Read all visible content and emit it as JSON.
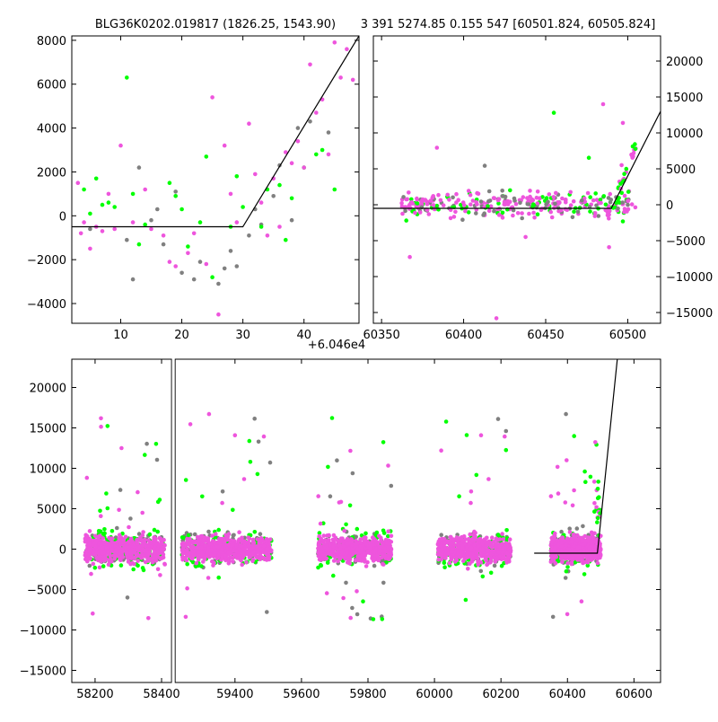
{
  "colors": {
    "green": "#00ff00",
    "gray": "#808080",
    "magenta": "#ee55dd",
    "model": "#000000",
    "frame": "#000000",
    "background": "#ffffff"
  },
  "chart_data": [
    {
      "type": "scatter",
      "title": "BLG36K0202.019817 (1826.25, 1543.90)",
      "x_offset_label": "+6.046e4",
      "xlim": [
        2,
        49
      ],
      "ylim": [
        -4900,
        8200
      ],
      "xticks": [
        10,
        20,
        30,
        40
      ],
      "xtick_labels": [
        "10",
        "20",
        "30",
        "40"
      ],
      "yticks": [
        -4000,
        -2000,
        0,
        2000,
        4000,
        6000,
        8000
      ],
      "ytick_labels": [
        "−4000",
        "−2000",
        "0",
        "2000",
        "4000",
        "6000",
        "8000"
      ],
      "y_axis_side": "left",
      "model_line": {
        "x": [
          2,
          30,
          49
        ],
        "y": [
          -500,
          -500,
          8200
        ]
      },
      "series": [
        {
          "color": "magenta",
          "points": [
            [
              3,
              1500
            ],
            [
              3.5,
              -800
            ],
            [
              4,
              -300
            ],
            [
              5,
              -1500
            ],
            [
              6,
              -500
            ],
            [
              7,
              -700
            ],
            [
              8,
              1000
            ],
            [
              9,
              -600
            ],
            [
              10,
              3200
            ],
            [
              12,
              -300
            ],
            [
              14,
              1200
            ],
            [
              15,
              -600
            ],
            [
              17,
              -900
            ],
            [
              18,
              -2100
            ],
            [
              19,
              -2300
            ],
            [
              21,
              -1700
            ],
            [
              22,
              -800
            ],
            [
              24,
              -2200
            ],
            [
              25,
              5400
            ],
            [
              26,
              -4500
            ],
            [
              27,
              3200
            ],
            [
              28,
              1000
            ],
            [
              29,
              -300
            ],
            [
              31,
              4200
            ],
            [
              32,
              1900
            ],
            [
              33,
              600
            ],
            [
              34,
              -900
            ],
            [
              35,
              1700
            ],
            [
              36,
              -500
            ],
            [
              37,
              2900
            ],
            [
              38,
              2400
            ],
            [
              39,
              3400
            ],
            [
              40,
              2200
            ],
            [
              41,
              6900
            ],
            [
              42,
              4700
            ],
            [
              43,
              5300
            ],
            [
              44,
              2800
            ],
            [
              45,
              7900
            ],
            [
              46,
              6300
            ],
            [
              47,
              7600
            ],
            [
              48,
              6200
            ]
          ]
        },
        {
          "color": "green",
          "points": [
            [
              4,
              1200
            ],
            [
              5,
              100
            ],
            [
              6,
              1700
            ],
            [
              7,
              500
            ],
            [
              8,
              600
            ],
            [
              9,
              400
            ],
            [
              11,
              6300
            ],
            [
              12,
              1000
            ],
            [
              13,
              -1300
            ],
            [
              14,
              -400
            ],
            [
              18,
              1500
            ],
            [
              19,
              900
            ],
            [
              20,
              300
            ],
            [
              21,
              -1400
            ],
            [
              23,
              -300
            ],
            [
              24,
              2700
            ],
            [
              25,
              -2800
            ],
            [
              28,
              -500
            ],
            [
              29,
              1800
            ],
            [
              30,
              400
            ],
            [
              33,
              -500
            ],
            [
              34,
              1200
            ],
            [
              36,
              1400
            ],
            [
              37,
              -1100
            ],
            [
              38,
              800
            ],
            [
              40,
              2200
            ],
            [
              42,
              2800
            ],
            [
              43,
              3000
            ],
            [
              45,
              1200
            ]
          ]
        },
        {
          "color": "gray",
          "points": [
            [
              5,
              -600
            ],
            [
              11,
              -1100
            ],
            [
              12,
              -2900
            ],
            [
              13,
              2200
            ],
            [
              15,
              -200
            ],
            [
              16,
              300
            ],
            [
              17,
              -1300
            ],
            [
              19,
              1100
            ],
            [
              20,
              -2600
            ],
            [
              22,
              -2900
            ],
            [
              23,
              -2100
            ],
            [
              26,
              -3100
            ],
            [
              27,
              -2400
            ],
            [
              28,
              -1600
            ],
            [
              29,
              -2300
            ],
            [
              31,
              -900
            ],
            [
              32,
              300
            ],
            [
              33,
              -400
            ],
            [
              35,
              900
            ],
            [
              36,
              2300
            ],
            [
              38,
              -200
            ],
            [
              39,
              4000
            ],
            [
              41,
              4300
            ],
            [
              44,
              3800
            ]
          ]
        }
      ]
    },
    {
      "type": "scatter",
      "title": "3 391 5274.85 0.155 547 [60501.824, 60505.824]",
      "xlim": [
        60345,
        60520
      ],
      "ylim": [
        -16500,
        23500
      ],
      "xticks": [
        60350,
        60400,
        60450,
        60500
      ],
      "xtick_labels": [
        "60350",
        "60400",
        "60450",
        "60500"
      ],
      "yticks": [
        -15000,
        -10000,
        -5000,
        0,
        5000,
        10000,
        15000,
        20000
      ],
      "ytick_labels": [
        "−15000",
        "−10000",
        "−5000",
        "0",
        "5000",
        "10000",
        "15000",
        "20000"
      ],
      "y_axis_side": "right",
      "model_line": {
        "x": [
          60345,
          60490,
          60520
        ],
        "y": [
          -500,
          -500,
          13000
        ]
      }
    },
    {
      "type": "scatter",
      "xlim": [
        58130,
        60680
      ],
      "ylim": [
        -16500,
        23500
      ],
      "x_break": [
        58430,
        59220
      ],
      "xticks": [
        58200,
        58400,
        59400,
        59600,
        59800,
        60000,
        60200,
        60400,
        60600
      ],
      "xtick_labels": [
        "58200",
        "58400",
        "59400",
        "59600",
        "59800",
        "60000",
        "60200",
        "60400",
        "60600"
      ],
      "yticks": [
        -15000,
        -10000,
        -5000,
        0,
        5000,
        10000,
        15000,
        20000
      ],
      "ytick_labels": [
        "−15000",
        "−10000",
        "−5000",
        "0",
        "5000",
        "10000",
        "15000",
        "20000"
      ],
      "y_axis_side": "left",
      "model_line": {
        "x": [
          60300,
          60490,
          60550
        ],
        "y": [
          -500,
          -500,
          23500
        ]
      },
      "seasons": [
        [
          58170,
          58410
        ],
        [
          59240,
          59510
        ],
        [
          59650,
          59870
        ],
        [
          60010,
          60230
        ],
        [
          60350,
          60500
        ]
      ]
    }
  ]
}
